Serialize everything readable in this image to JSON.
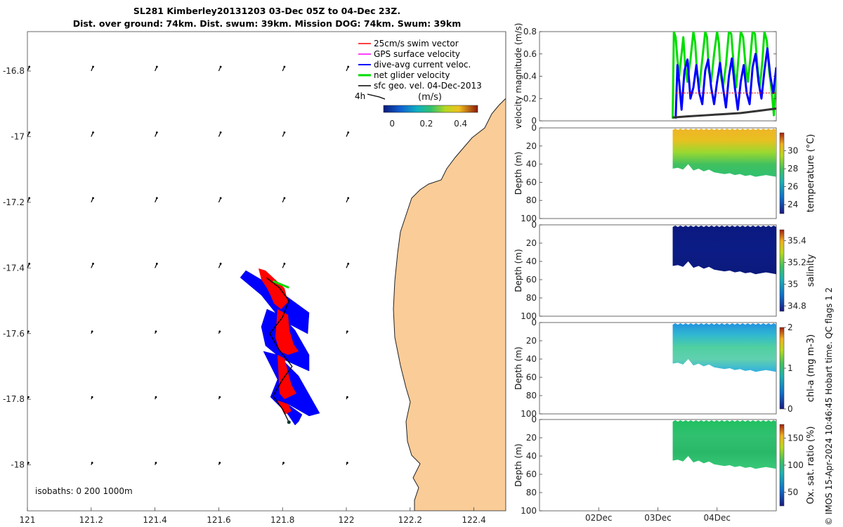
{
  "header": {
    "title_line1": "SL281 Kimberley20131203 03-Dec 05Z to 04-Dec 23Z.",
    "title_line2": "Dist. over ground: 74km. Dist. swum: 39km. Mission DOG: 74km. Swum: 39km"
  },
  "credit": "© IMOS 15-Apr-2024 10:46:45 Hobart time. QC flags 1  2",
  "chart_data": [
    {
      "type": "map",
      "name": "glider track map",
      "x_ticks": [
        "121",
        "121.2",
        "121.4",
        "121.6",
        "121.8",
        "122",
        "122.2",
        "122.4"
      ],
      "x_values": [
        121,
        121.2,
        121.4,
        121.6,
        121.8,
        122,
        122.2,
        122.4
      ],
      "y_ticks": [
        "-16.8",
        "-17",
        "-17.2",
        "-17.4",
        "-17.6",
        "-17.8",
        "-18"
      ],
      "y_values": [
        -16.8,
        -17,
        -17.2,
        -17.4,
        -17.6,
        -17.8,
        -18
      ],
      "xlim": [
        121,
        122.5
      ],
      "ylim": [
        -18.14,
        -16.68
      ],
      "legend": [
        {
          "label": "25cm/s swim vector",
          "color": "#ff0000"
        },
        {
          "label": "GPS surface velocity",
          "color": "#ff00ff"
        },
        {
          "label": "dive-avg current veloc.",
          "color": "#0000ff"
        },
        {
          "label": "net glider velocity",
          "color": "#00dd00"
        },
        {
          "label": "sfc geo. vel. 04-Dec-2013",
          "color": "#000000"
        }
      ],
      "scale_label": "4h",
      "colorbar": {
        "label": "(m/s)",
        "ticks": [
          "0",
          "0.2",
          "0.4"
        ],
        "range": [
          -0.05,
          0.5
        ]
      },
      "isobaths_label": "isobaths: 0   200  1000m",
      "track": [
        [
          121.82,
          -17.87
        ],
        [
          121.8,
          -17.83
        ],
        [
          121.77,
          -17.79
        ],
        [
          121.8,
          -17.74
        ],
        [
          121.83,
          -17.7
        ],
        [
          121.79,
          -17.65
        ],
        [
          121.76,
          -17.6
        ],
        [
          121.8,
          -17.55
        ],
        [
          121.82,
          -17.5
        ],
        [
          121.79,
          -17.46
        ],
        [
          121.75,
          -17.43
        ]
      ],
      "net_velocity": [
        [
          121.77,
          -17.44
        ],
        [
          121.82,
          -17.46
        ]
      ]
    },
    {
      "type": "line",
      "name": "velocity magnitude",
      "ylabel": "velocity magnitude (m/s)",
      "ylim": [
        0,
        0.8
      ],
      "y_ticks": [
        "0",
        "0.2",
        "0.4",
        "0.6",
        "0.8"
      ],
      "x_ticks": [
        "02Dec",
        "03Dec",
        "04Dec"
      ],
      "x_tick_values": [
        2.0,
        3.0,
        4.0
      ],
      "xlim": [
        1.0,
        5.0
      ],
      "series": [
        {
          "name": "net glider velocity",
          "color": "#00dd00",
          "x": [
            3.25,
            3.27,
            3.3,
            3.33,
            3.36,
            3.4,
            3.43,
            3.46,
            3.5,
            3.55,
            3.6,
            3.63,
            3.66,
            3.7,
            3.75,
            3.8,
            3.83,
            3.86,
            3.9,
            3.95,
            4.0,
            4.03,
            4.06,
            4.1,
            4.15,
            4.2,
            4.24,
            4.28,
            4.32,
            4.36,
            4.4,
            4.44,
            4.48,
            4.52,
            4.56,
            4.6,
            4.64,
            4.68,
            4.72,
            4.76,
            4.8,
            4.84,
            4.88,
            4.92,
            4.96,
            5.0
          ],
          "y": [
            0.02,
            0.8,
            0.75,
            0.55,
            0.4,
            0.6,
            0.75,
            0.5,
            0.35,
            0.55,
            0.8,
            0.7,
            0.45,
            0.3,
            0.55,
            0.8,
            0.75,
            0.45,
            0.35,
            0.6,
            0.8,
            0.7,
            0.42,
            0.3,
            0.5,
            0.8,
            0.78,
            0.5,
            0.3,
            0.55,
            0.8,
            0.75,
            0.5,
            0.35,
            0.55,
            0.8,
            0.78,
            0.5,
            0.3,
            0.5,
            0.8,
            0.72,
            0.45,
            0.28,
            0.05,
            0.45
          ]
        },
        {
          "name": "dive-avg current veloc.",
          "color": "#0000ff",
          "x": [
            3.3,
            3.33,
            3.36,
            3.4,
            3.45,
            3.5,
            3.55,
            3.6,
            3.65,
            3.7,
            3.75,
            3.8,
            3.85,
            3.9,
            3.95,
            4.0,
            4.05,
            4.1,
            4.15,
            4.2,
            4.25,
            4.3,
            4.35,
            4.4,
            4.45,
            4.5,
            4.55,
            4.6,
            4.65,
            4.7,
            4.75,
            4.8,
            4.85,
            4.9,
            4.95,
            5.0
          ],
          "y": [
            0.02,
            0.5,
            0.35,
            0.1,
            0.45,
            0.55,
            0.2,
            0.3,
            0.5,
            0.25,
            0.15,
            0.45,
            0.55,
            0.3,
            0.15,
            0.35,
            0.52,
            0.3,
            0.12,
            0.4,
            0.56,
            0.3,
            0.1,
            0.35,
            0.5,
            0.25,
            0.15,
            0.48,
            0.6,
            0.35,
            0.2,
            0.45,
            0.65,
            0.4,
            0.25,
            0.48
          ]
        },
        {
          "name": "25cm/s swim vector",
          "color": "#ff0000",
          "x": [
            3.3,
            5.0
          ],
          "y": [
            0.25,
            0.25
          ]
        },
        {
          "name": "sfc geo. vel.",
          "color": "#333333",
          "x": [
            3.25,
            3.5,
            3.8,
            4.1,
            4.4,
            4.7,
            5.0
          ],
          "y": [
            0.03,
            0.04,
            0.05,
            0.06,
            0.07,
            0.09,
            0.11
          ]
        }
      ]
    },
    {
      "type": "heatmap",
      "name": "temperature section",
      "ylabel": "Depth (m)",
      "y_ticks": [
        "0",
        "20",
        "40",
        "60",
        "80",
        "100"
      ],
      "ylim": [
        100,
        0
      ],
      "colorbar_label": "temperature (°C)",
      "colorbar_ticks": [
        "24",
        "26",
        "28",
        "30"
      ],
      "colorbar_range": [
        23,
        32
      ],
      "x_range_days": [
        3.25,
        5.0
      ],
      "surface_value": 30.5,
      "deep_value": 27.8
    },
    {
      "type": "heatmap",
      "name": "salinity section",
      "ylabel": "Depth (m)",
      "y_ticks": [
        "0",
        "20",
        "40",
        "60",
        "80",
        "100"
      ],
      "ylim": [
        100,
        0
      ],
      "colorbar_label": "salinity",
      "colorbar_ticks": [
        "34.8",
        "35",
        "35.2",
        "35.4"
      ],
      "colorbar_range": [
        34.75,
        35.5
      ],
      "x_range_days": [
        3.25,
        5.0
      ],
      "surface_value": 34.76,
      "deep_value": 34.77
    },
    {
      "type": "heatmap",
      "name": "chlorophyll section",
      "ylabel": "Depth (m)",
      "y_ticks": [
        "0",
        "20",
        "40",
        "60",
        "80",
        "100"
      ],
      "ylim": [
        100,
        0
      ],
      "colorbar_label": "chl-a (mg m-3)",
      "colorbar_ticks": [
        "0",
        "1",
        "2"
      ],
      "colorbar_range": [
        0,
        2
      ],
      "x_range_days": [
        3.25,
        5.0
      ],
      "surface_value": 0.55,
      "deep_value": 0.85
    },
    {
      "type": "heatmap",
      "name": "oxygen saturation section",
      "ylabel": "Depth (m)",
      "y_ticks": [
        "0",
        "20",
        "40",
        "60",
        "80",
        "100"
      ],
      "ylim": [
        100,
        0
      ],
      "colorbar_label": "Ox. sat. ratio (%)",
      "colorbar_ticks": [
        "50",
        "100",
        "150"
      ],
      "colorbar_range": [
        25,
        175
      ],
      "x_range_days": [
        3.25,
        5.0
      ],
      "surface_value": 112,
      "deep_value": 106
    }
  ]
}
